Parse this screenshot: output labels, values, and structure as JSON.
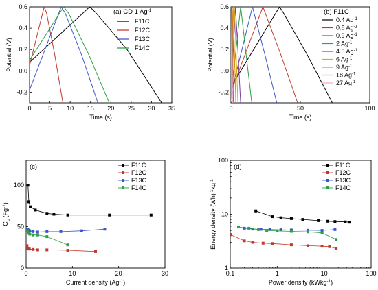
{
  "chart_data": [
    {
      "id": "a",
      "type": "line",
      "panel_label": "(a) CD 1 Ag",
      "panel_label_sup": "-1",
      "xlabel": "Time (s)",
      "ylabel": "Potential (V)",
      "xlim": [
        0,
        35
      ],
      "ylim": [
        -0.3,
        0.6
      ],
      "xticks": [
        0,
        5,
        10,
        15,
        20,
        25,
        30,
        35
      ],
      "yticks": [
        -0.2,
        0.0,
        0.2,
        0.4,
        0.6
      ],
      "ytick_labels": [
        "-0.2",
        "0.0",
        "0.2",
        "0.4",
        "0.6"
      ],
      "legend_position": "top-right",
      "series": [
        {
          "name": "F11C",
          "color": "#000000",
          "x": [
            0,
            14.8,
            16.2,
            24.0,
            32.5
          ],
          "y": [
            0.08,
            0.6,
            0.55,
            0.2,
            -0.3
          ]
        },
        {
          "name": "F12C",
          "color": "#c0392b",
          "x": [
            0,
            3.6,
            4.2,
            6.2,
            8.2
          ],
          "y": [
            0.05,
            0.6,
            0.54,
            0.15,
            -0.3
          ]
        },
        {
          "name": "F13C",
          "color": "#3b56c9",
          "x": [
            0,
            7.8,
            8.8,
            12.8,
            16.8
          ],
          "y": [
            -0.18,
            0.6,
            0.54,
            0.15,
            -0.3
          ]
        },
        {
          "name": "F14C",
          "color": "#2e9e48",
          "x": [
            0,
            8.4,
            9.6,
            14.6,
            19.6
          ],
          "y": [
            0.1,
            0.6,
            0.54,
            0.15,
            -0.3
          ]
        }
      ]
    },
    {
      "id": "b",
      "type": "line",
      "panel_label": "(b) F11C",
      "xlabel": "Time (s)",
      "ylabel": "Potential (V)",
      "xlim": [
        0,
        100
      ],
      "ylim": [
        -0.3,
        0.6
      ],
      "xticks": [
        0,
        50,
        100
      ],
      "yticks": [
        -0.2,
        0.0,
        0.2,
        0.4,
        0.6
      ],
      "ytick_labels": [
        "-0.2",
        "0.0",
        "0.2",
        "0.4",
        "0.6"
      ],
      "legend_position": "top-right",
      "legend_unit": "Ag",
      "legend_unit_sup": "-1",
      "series": [
        {
          "name": "0.4",
          "color": "#000000",
          "x": [
            0,
            35,
            37.5,
            55,
            73
          ],
          "y": [
            -0.15,
            0.6,
            0.55,
            0.15,
            -0.3
          ]
        },
        {
          "name": "0.6",
          "color": "#c0392b",
          "x": [
            0,
            23,
            24.5,
            36,
            48
          ],
          "y": [
            -0.2,
            0.6,
            0.55,
            0.15,
            -0.3
          ]
        },
        {
          "name": "0.9",
          "color": "#3b56c9",
          "x": [
            0,
            15.5,
            16.5,
            24.5,
            33
          ],
          "y": [
            -0.22,
            0.6,
            0.55,
            0.15,
            -0.3
          ]
        },
        {
          "name": "2",
          "color": "#2e9e48",
          "x": [
            0,
            7,
            7.5,
            11,
            15
          ],
          "y": [
            -0.25,
            0.6,
            0.55,
            0.15,
            -0.3
          ]
        },
        {
          "name": "4.5",
          "color": "#7b3f99",
          "x": [
            0,
            3.2,
            3.5,
            5.2,
            7
          ],
          "y": [
            -0.27,
            0.6,
            0.55,
            0.15,
            -0.3
          ]
        },
        {
          "name": "6",
          "color": "#d4b106",
          "x": [
            0,
            2.4,
            2.6,
            3.8,
            5
          ],
          "y": [
            -0.28,
            0.6,
            0.55,
            0.15,
            -0.3
          ]
        },
        {
          "name": "9",
          "color": "#e88e10",
          "x": [
            0,
            1.6,
            1.8,
            2.6,
            3.5
          ],
          "y": [
            -0.28,
            0.6,
            0.55,
            0.15,
            -0.3
          ]
        },
        {
          "name": "18",
          "color": "#a86b3a",
          "x": [
            0,
            0.8,
            0.9,
            1.3,
            1.8
          ],
          "y": [
            -0.29,
            0.6,
            0.55,
            0.15,
            -0.3
          ]
        },
        {
          "name": "27",
          "color": "#f5a6c8",
          "x": [
            0,
            0.5,
            0.6,
            0.9,
            1.2
          ],
          "y": [
            -0.29,
            0.6,
            0.55,
            0.15,
            -0.3
          ]
        }
      ]
    },
    {
      "id": "c",
      "type": "scatter",
      "panel_label": "(c)",
      "xlabel": "Current density (Ag",
      "xlabel_sup": "-1",
      "xlabel_end": ")",
      "ylabel": "C",
      "ylabel_sub": "s",
      "ylabel_end": " (Fg",
      "ylabel_sup": "-1",
      "ylabel_close": ")",
      "xlim": [
        0,
        30
      ],
      "ylim": [
        0,
        130
      ],
      "xticks": [
        0,
        10,
        20,
        30
      ],
      "yticks": [
        0,
        50,
        100
      ],
      "legend_position": "top-right",
      "series": [
        {
          "name": "F11C",
          "color": "#000000",
          "marker": "square",
          "x": [
            0.4,
            0.6,
            0.9,
            2,
            4.5,
            6,
            9,
            18,
            27
          ],
          "y": [
            100,
            80,
            74,
            70,
            66,
            65,
            64,
            64,
            64
          ]
        },
        {
          "name": "F12C",
          "color": "#c0392b",
          "marker": "square",
          "x": [
            0.2,
            0.4,
            0.7,
            1.5,
            2.5,
            4.5,
            9,
            15
          ],
          "y": [
            27,
            24,
            23,
            22.5,
            22,
            22,
            21.5,
            20
          ]
        },
        {
          "name": "F13C",
          "color": "#3b56c9",
          "marker": "square",
          "x": [
            0.3,
            0.5,
            0.8,
            1.5,
            2.5,
            4.5,
            7.5,
            12,
            17
          ],
          "y": [
            47,
            46,
            45,
            44,
            43.5,
            44,
            44,
            45,
            47
          ]
        },
        {
          "name": "F14C",
          "color": "#2e9e48",
          "marker": "square",
          "x": [
            0.3,
            0.5,
            0.8,
            1.5,
            2.5,
            4.5,
            9
          ],
          "y": [
            45,
            42,
            41,
            40,
            40,
            38,
            28
          ]
        }
      ]
    },
    {
      "id": "d",
      "type": "scatter",
      "panel_label": "(d)",
      "xlabel": "Power density (kWkg",
      "xlabel_sup": "-1",
      "xlabel_end": ")",
      "ylabel": "Energy density (Wh",
      "ylabel_sup": "-1",
      "ylabel_mid": "kg",
      "ylabel_sup2": "-1",
      "ylabel_end": ")",
      "xscale": "log",
      "yscale": "log",
      "xlim": [
        0.1,
        100
      ],
      "ylim": [
        1,
        100
      ],
      "xticks": [
        0.1,
        1,
        10,
        100
      ],
      "xtick_labels": [
        "0.1",
        "1",
        "10",
        "100"
      ],
      "yticks": [
        1,
        10,
        100
      ],
      "ytick_labels": [
        "1",
        "10",
        "100"
      ],
      "legend_position": "top-right",
      "series": [
        {
          "name": "F11C",
          "color": "#000000",
          "marker": "square",
          "x": [
            0.35,
            0.8,
            1.2,
            2.0,
            3.5,
            7.5,
            12,
            17,
            28,
            35
          ],
          "y": [
            11.5,
            9.0,
            8.6,
            8.3,
            8.0,
            7.6,
            7.4,
            7.3,
            7.2,
            7.1
          ]
        },
        {
          "name": "F12C",
          "color": "#c0392b",
          "marker": "square",
          "x": [
            0.1,
            0.2,
            0.3,
            0.5,
            0.8,
            2.0,
            4.5,
            9,
            13,
            18
          ],
          "y": [
            4.2,
            3.2,
            3.0,
            2.9,
            2.85,
            2.7,
            2.6,
            2.55,
            2.5,
            2.3
          ]
        },
        {
          "name": "F13C",
          "color": "#3b56c9",
          "marker": "square",
          "x": [
            0.2,
            0.3,
            0.45,
            0.7,
            1.2,
            2.0,
            4.5,
            9,
            17
          ],
          "y": [
            5.5,
            5.3,
            5.25,
            5.2,
            5.15,
            5.1,
            5.05,
            5.0,
            5.2
          ]
        },
        {
          "name": "F14C",
          "color": "#2e9e48",
          "marker": "square",
          "x": [
            0.15,
            0.25,
            0.4,
            0.6,
            1.0,
            2.0,
            4.5,
            9,
            18
          ],
          "y": [
            5.8,
            5.5,
            5.2,
            5.0,
            4.9,
            4.8,
            4.7,
            4.5,
            3.4
          ]
        }
      ]
    }
  ]
}
